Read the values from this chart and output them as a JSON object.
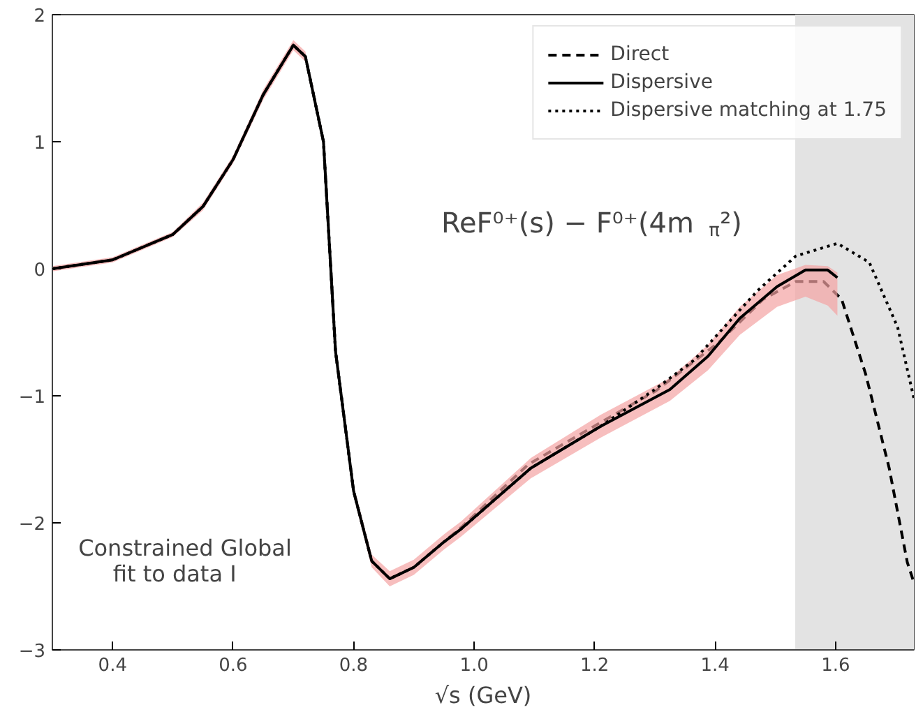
{
  "chart_data": {
    "type": "line",
    "xlabel": "√s (GeV)",
    "xlim": [
      0.3,
      1.73
    ],
    "ylim": [
      -3,
      2
    ],
    "xticks": [
      0.4,
      0.6,
      0.8,
      {
        "value": 1.0,
        "label": "1.0"
      },
      1.2,
      1.4,
      1.6
    ],
    "yticks": [
      -3,
      -2,
      -1,
      0,
      1,
      2
    ],
    "grid": false,
    "legend": "top right",
    "series": [
      {
        "name": "Direct",
        "color": "#000000",
        "line_style": "dashed",
        "x": [
          0.3,
          0.4,
          0.5,
          0.55,
          0.6,
          0.65,
          0.7,
          0.72,
          0.75,
          0.77,
          0.8,
          0.83,
          0.86,
          0.9,
          0.95,
          0.98,
          1.09,
          1.21,
          1.302,
          1.406,
          1.48,
          1.534,
          1.58,
          1.61,
          1.65,
          1.689,
          1.719,
          1.73
        ],
        "values": [
          0,
          0.07,
          0.27,
          0.49,
          0.86,
          1.37,
          1.76,
          1.67,
          1.0,
          -0.65,
          -1.75,
          -2.3,
          -2.44,
          -2.35,
          -2.15,
          -2.03,
          -1.54,
          -1.21,
          -0.96,
          -0.58,
          -0.24,
          -0.1,
          -0.1,
          -0.24,
          -0.83,
          -1.57,
          -2.31,
          -2.47
        ]
      },
      {
        "name": "Dispersive",
        "color": "#000000",
        "line_style": "solid",
        "x": [
          0.3,
          0.4,
          0.5,
          0.55,
          0.6,
          0.65,
          0.7,
          0.72,
          0.75,
          0.77,
          0.8,
          0.83,
          0.86,
          0.9,
          0.95,
          0.978,
          1.094,
          1.21,
          1.325,
          1.388,
          1.441,
          1.503,
          1.55,
          1.587,
          1.603
        ],
        "values": [
          0,
          0.07,
          0.27,
          0.49,
          0.86,
          1.37,
          1.76,
          1.67,
          1.0,
          -0.65,
          -1.75,
          -2.3,
          -2.44,
          -2.35,
          -2.15,
          -2.05,
          -1.57,
          -1.24,
          -0.95,
          -0.69,
          -0.39,
          -0.14,
          -0.01,
          -0.01,
          -0.07
        ],
        "lower": [
          -0.02,
          0.05,
          0.25,
          0.46,
          0.83,
          1.33,
          1.72,
          1.63,
          0.96,
          -0.69,
          -1.79,
          -2.35,
          -2.5,
          -2.41,
          -2.21,
          -2.11,
          -1.65,
          -1.33,
          -1.04,
          -0.8,
          -0.52,
          -0.3,
          -0.22,
          -0.29,
          -0.37
        ],
        "upper": [
          0.02,
          0.09,
          0.29,
          0.52,
          0.89,
          1.41,
          1.8,
          1.71,
          1.04,
          -0.61,
          -1.71,
          -2.25,
          -2.38,
          -2.29,
          -2.09,
          -1.99,
          -1.49,
          -1.15,
          -0.86,
          -0.6,
          -0.3,
          -0.05,
          0.03,
          0.02,
          -0.03
        ]
      },
      {
        "name": "Dispersive matching at 1.75",
        "color": "#000000",
        "line_style": "dotted",
        "x": [
          0.3,
          0.4,
          0.5,
          0.55,
          0.6,
          0.65,
          0.7,
          0.72,
          0.75,
          0.77,
          0.8,
          0.83,
          0.86,
          0.9,
          0.95,
          0.978,
          1.094,
          1.21,
          1.3,
          1.365,
          1.471,
          1.534,
          1.603,
          1.656,
          1.703,
          1.73
        ],
        "values": [
          0,
          0.07,
          0.27,
          0.49,
          0.86,
          1.37,
          1.76,
          1.67,
          1.0,
          -0.65,
          -1.75,
          -2.3,
          -2.44,
          -2.35,
          -2.15,
          -2.05,
          -1.57,
          -1.24,
          -0.95,
          -0.72,
          -0.17,
          0.1,
          0.2,
          0.05,
          -0.46,
          -1.02
        ]
      }
    ],
    "bands": [
      {
        "axis": "x",
        "from": 1.533,
        "to": 1.73,
        "color": "#e3e3e3"
      }
    ],
    "annotations": [
      "ReF⁰⁺(s) − F⁰⁺(4m$_{π}$²)",
      "Constrained Global\nfit to data I"
    ]
  }
}
